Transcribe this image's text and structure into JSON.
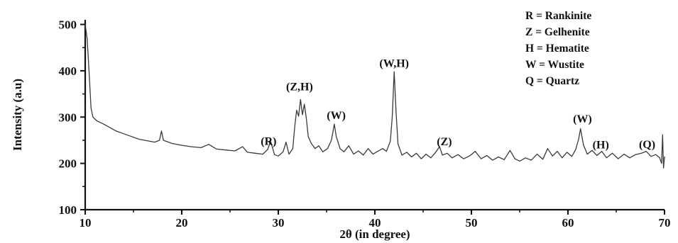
{
  "chart_data": {
    "type": "line",
    "xlabel": "2θ (in degree)",
    "ylabel": "Intensity (a.u)",
    "xlim": [
      10,
      70
    ],
    "ylim": [
      100,
      510
    ],
    "x_ticks": [
      "10",
      "20",
      "30",
      "40",
      "50",
      "60",
      "70"
    ],
    "y_ticks": [
      "100",
      "200",
      "300",
      "400",
      "500"
    ],
    "grid": false,
    "line_color": "#3a3a3a",
    "legend_position": "top-right",
    "legend": [
      "R = Rankinite",
      "Z = Gelhenite",
      "H = Hematite",
      "W = Wustite",
      "Q = Quartz"
    ],
    "peak_annotations": [
      {
        "label": "(R)",
        "x": 29.0,
        "y": 234
      },
      {
        "label": "(Z,H)",
        "x": 32.2,
        "y": 352
      },
      {
        "label": "(W)",
        "x": 36.0,
        "y": 290
      },
      {
        "label": "(W,H)",
        "x": 42.0,
        "y": 402
      },
      {
        "label": "(Z)",
        "x": 47.2,
        "y": 233
      },
      {
        "label": "(W)",
        "x": 61.5,
        "y": 282
      },
      {
        "label": "(H)",
        "x": 63.4,
        "y": 226
      },
      {
        "label": "(Q)",
        "x": 68.2,
        "y": 227
      }
    ],
    "series": [
      {
        "values": [
          [
            10.0,
            500
          ],
          [
            10.2,
            470
          ],
          [
            10.4,
            400
          ],
          [
            10.6,
            320
          ],
          [
            10.8,
            300
          ],
          [
            11.2,
            292
          ],
          [
            11.8,
            286
          ],
          [
            12.5,
            278
          ],
          [
            13.2,
            270
          ],
          [
            14.0,
            264
          ],
          [
            14.8,
            258
          ],
          [
            15.6,
            252
          ],
          [
            16.4,
            249
          ],
          [
            17.2,
            246
          ],
          [
            17.7,
            250
          ],
          [
            17.9,
            270
          ],
          [
            18.1,
            250
          ],
          [
            19.0,
            243
          ],
          [
            20.0,
            239
          ],
          [
            21.0,
            236
          ],
          [
            22.0,
            234
          ],
          [
            22.8,
            241
          ],
          [
            23.6,
            231
          ],
          [
            24.5,
            229
          ],
          [
            25.5,
            227
          ],
          [
            26.3,
            236
          ],
          [
            26.8,
            224
          ],
          [
            27.6,
            222
          ],
          [
            28.4,
            220
          ],
          [
            28.9,
            230
          ],
          [
            29.2,
            248
          ],
          [
            29.6,
            219
          ],
          [
            30.0,
            216
          ],
          [
            30.5,
            225
          ],
          [
            30.8,
            246
          ],
          [
            31.1,
            220
          ],
          [
            31.5,
            232
          ],
          [
            31.7,
            278
          ],
          [
            31.9,
            315
          ],
          [
            32.1,
            302
          ],
          [
            32.3,
            338
          ],
          [
            32.5,
            305
          ],
          [
            32.7,
            328
          ],
          [
            32.9,
            298
          ],
          [
            33.1,
            258
          ],
          [
            33.4,
            244
          ],
          [
            33.8,
            232
          ],
          [
            34.2,
            238
          ],
          [
            34.6,
            225
          ],
          [
            35.1,
            232
          ],
          [
            35.5,
            250
          ],
          [
            35.8,
            285
          ],
          [
            36.0,
            258
          ],
          [
            36.4,
            232
          ],
          [
            36.8,
            225
          ],
          [
            37.3,
            238
          ],
          [
            37.8,
            220
          ],
          [
            38.3,
            227
          ],
          [
            38.8,
            218
          ],
          [
            39.3,
            232
          ],
          [
            39.8,
            220
          ],
          [
            40.3,
            226
          ],
          [
            40.8,
            232
          ],
          [
            41.2,
            226
          ],
          [
            41.6,
            248
          ],
          [
            41.8,
            300
          ],
          [
            42.0,
            398
          ],
          [
            42.2,
            310
          ],
          [
            42.4,
            242
          ],
          [
            42.8,
            218
          ],
          [
            43.3,
            224
          ],
          [
            43.8,
            214
          ],
          [
            44.3,
            222
          ],
          [
            44.8,
            210
          ],
          [
            45.3,
            220
          ],
          [
            45.8,
            212
          ],
          [
            46.3,
            224
          ],
          [
            46.7,
            236
          ],
          [
            47.0,
            218
          ],
          [
            47.5,
            222
          ],
          [
            48.0,
            212
          ],
          [
            48.6,
            219
          ],
          [
            49.2,
            210
          ],
          [
            49.8,
            216
          ],
          [
            50.4,
            226
          ],
          [
            51.0,
            210
          ],
          [
            51.6,
            217
          ],
          [
            52.2,
            207
          ],
          [
            52.8,
            214
          ],
          [
            53.4,
            208
          ],
          [
            54.0,
            228
          ],
          [
            54.5,
            210
          ],
          [
            55.0,
            205
          ],
          [
            55.6,
            212
          ],
          [
            56.2,
            207
          ],
          [
            56.8,
            220
          ],
          [
            57.4,
            209
          ],
          [
            57.9,
            232
          ],
          [
            58.4,
            216
          ],
          [
            58.9,
            226
          ],
          [
            59.4,
            212
          ],
          [
            59.9,
            224
          ],
          [
            60.4,
            215
          ],
          [
            60.8,
            230
          ],
          [
            61.1,
            252
          ],
          [
            61.3,
            275
          ],
          [
            61.6,
            240
          ],
          [
            62.0,
            220
          ],
          [
            62.5,
            228
          ],
          [
            63.0,
            217
          ],
          [
            63.5,
            226
          ],
          [
            64.0,
            212
          ],
          [
            64.6,
            222
          ],
          [
            65.2,
            210
          ],
          [
            65.8,
            220
          ],
          [
            66.4,
            212
          ],
          [
            67.0,
            219
          ],
          [
            67.6,
            222
          ],
          [
            68.1,
            226
          ],
          [
            68.6,
            215
          ],
          [
            69.1,
            219
          ],
          [
            69.5,
            212
          ],
          [
            69.7,
            200
          ],
          [
            69.8,
            262
          ],
          [
            69.9,
            190
          ],
          [
            70.0,
            215
          ]
        ]
      }
    ]
  }
}
